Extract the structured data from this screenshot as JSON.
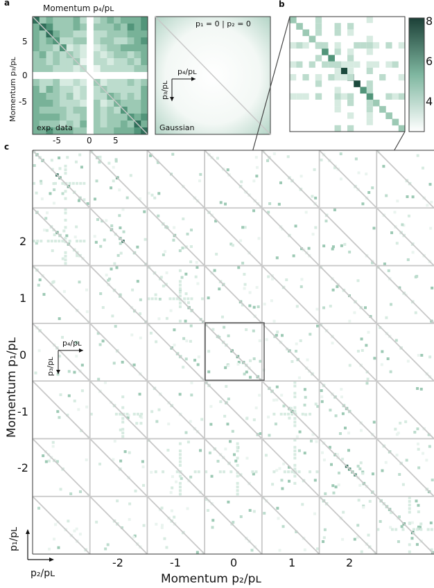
{
  "panel_labels": {
    "a": "a",
    "b": "b",
    "c": "c"
  },
  "panel_a": {
    "top_title": "Momentum p₄/pʟ",
    "left_ylabel": "Momentum p₃/pʟ",
    "left_yticks": [
      "5",
      "0",
      "-5"
    ],
    "left_xticks": [
      "-5",
      "0",
      "5"
    ],
    "left_caption": "exp. data",
    "right_caption": "Gaussian",
    "right_condition": "p₁ = 0 | p₂ = 0",
    "axis_h": "p₄/pʟ",
    "axis_v": "p₃/pʟ"
  },
  "panel_b": {
    "colorbar_ticks": [
      "8",
      "6",
      "4"
    ]
  },
  "panel_c": {
    "xlabel": "Momentum p₂/pʟ",
    "ylabel": "Momentum p₁/pʟ",
    "xticks": [
      "-2",
      "-1",
      "0",
      "1",
      "2"
    ],
    "yticks": [
      "2",
      "1",
      "0",
      "-1",
      "-2"
    ],
    "inset_h": "p₄/pʟ",
    "inset_v": "p₃/pʟ",
    "corner_v": "p₁/pʟ",
    "corner_h": "p₂/pʟ"
  },
  "colors": {
    "dark": "#1f4a3e",
    "mid": "#5f9a82",
    "light": "#cfe6dc",
    "grid": "#c8c8c8",
    "frame": "#444444"
  }
}
